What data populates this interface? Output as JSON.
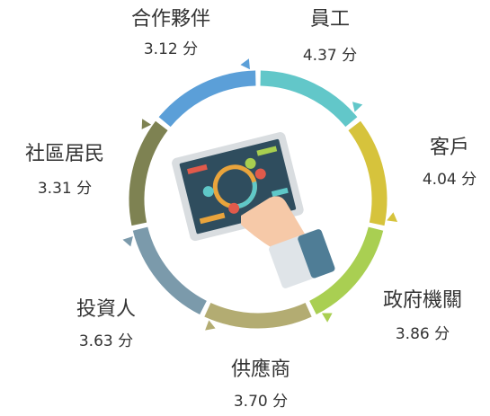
{
  "nodes": [
    {
      "label": "員工",
      "score": "4.37 分"
    },
    {
      "label": "客戶",
      "score": "4.04 分"
    },
    {
      "label": "政府機關",
      "score": "3.86 分"
    },
    {
      "label": "供應商",
      "score": "3.70 分"
    },
    {
      "label": "投資人",
      "score": "3.63 分"
    },
    {
      "label": "社區居民",
      "score": "3.31 分"
    },
    {
      "label": "合作夥伴",
      "score": "3.12 分"
    }
  ]
}
